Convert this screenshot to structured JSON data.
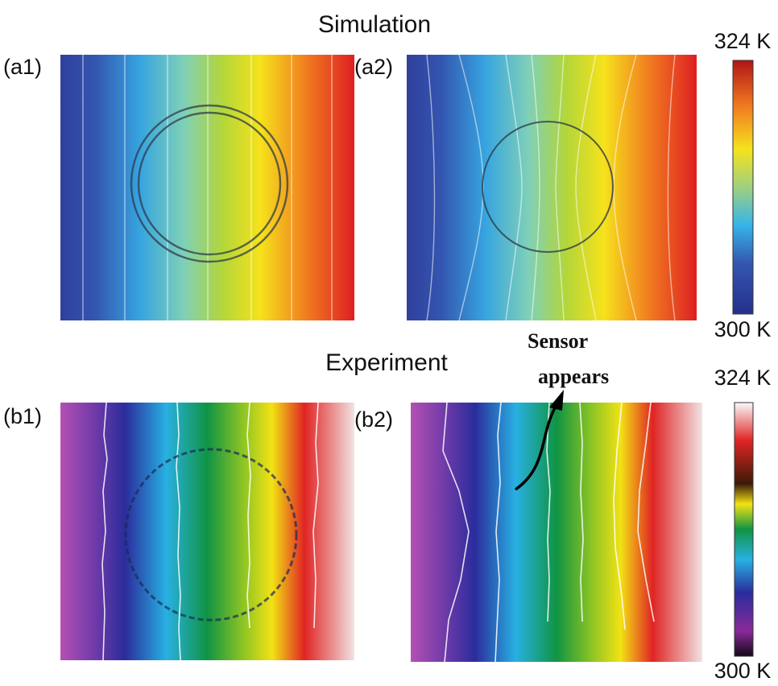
{
  "titles": {
    "simulation": "Simulation",
    "experiment": "Experiment"
  },
  "panels": [
    {
      "label": "(a1)"
    },
    {
      "label": "(a2)"
    },
    {
      "label": "(b1)"
    },
    {
      "label": "(b2)"
    }
  ],
  "colorbars": [
    {
      "max": "324 K",
      "min": "300 K"
    },
    {
      "max": "324 K",
      "min": "300 K"
    }
  ],
  "annotation": {
    "line1": "Sensor",
    "line2": "appears"
  }
}
